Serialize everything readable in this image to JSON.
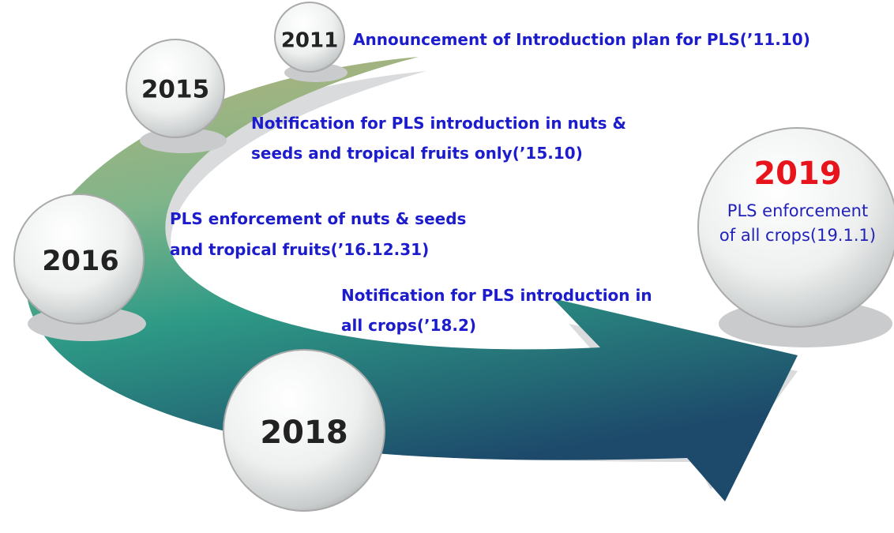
{
  "milestones": [
    {
      "year": "2011",
      "text": [
        "Announcement of Introduction plan for PLS(’11.10)"
      ]
    },
    {
      "year": "2015",
      "text": [
        "Notification for PLS introduction in nuts &",
        "seeds and tropical fruits only(’15.10)"
      ]
    },
    {
      "year": "2016",
      "text": [
        "PLS enforcement of nuts & seeds",
        "and tropical fruits(’16.12.31)"
      ]
    },
    {
      "year": "2018",
      "text": [
        "Notification for PLS introduction in",
        "all crops(’18.2)"
      ]
    },
    {
      "year": "2019",
      "text": [
        "PLS enforcement",
        "of all crops(19.1.1)"
      ]
    }
  ]
}
